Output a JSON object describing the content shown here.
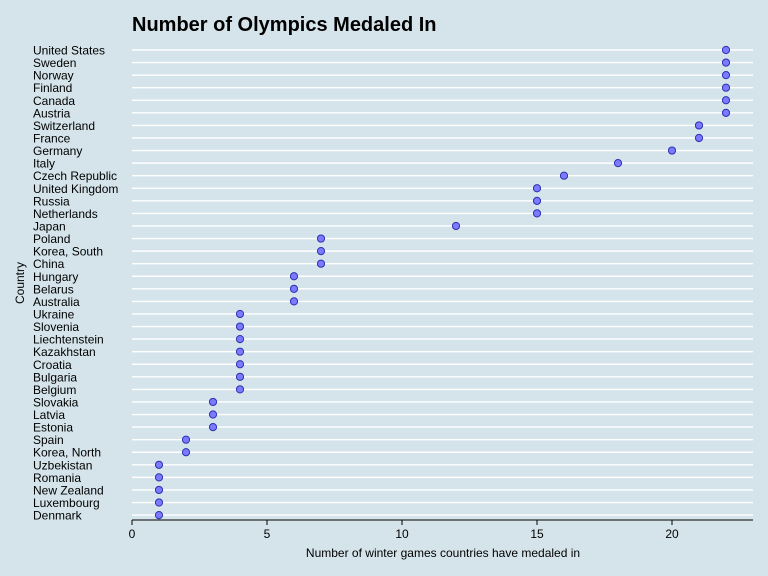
{
  "chart_data": {
    "type": "scatter",
    "title": "Number of Olympics Medaled In",
    "xlabel": "Number of winter games countries have medaled in",
    "ylabel": "Country",
    "xlim": [
      0,
      23
    ],
    "x_ticks": [
      0,
      5,
      10,
      15,
      20
    ],
    "grid": "horizontal",
    "colors": {
      "background": "#d5e4eb",
      "grid": "#ffffff",
      "point_fill": "#7b7bff",
      "point_stroke": "#2f2fb0"
    },
    "categories": [
      "United States",
      "Sweden",
      "Norway",
      "Finland",
      "Canada",
      "Austria",
      "Switzerland",
      "France",
      "Germany",
      "Italy",
      "Czech Republic",
      "United Kingdom",
      "Russia",
      "Netherlands",
      "Japan",
      "Poland",
      "Korea, South",
      "China",
      "Hungary",
      "Belarus",
      "Australia",
      "Ukraine",
      "Slovenia",
      "Liechtenstein",
      "Kazakhstan",
      "Croatia",
      "Bulgaria",
      "Belgium",
      "Slovakia",
      "Latvia",
      "Estonia",
      "Spain",
      "Korea, North",
      "Uzbekistan",
      "Romania",
      "New Zealand",
      "Luxembourg",
      "Denmark"
    ],
    "values": [
      22,
      22,
      22,
      22,
      22,
      22,
      21,
      21,
      20,
      18,
      16,
      15,
      15,
      15,
      12,
      7,
      7,
      7,
      6,
      6,
      6,
      4,
      4,
      4,
      4,
      4,
      4,
      4,
      3,
      3,
      3,
      2,
      2,
      1,
      1,
      1,
      1,
      1
    ]
  }
}
